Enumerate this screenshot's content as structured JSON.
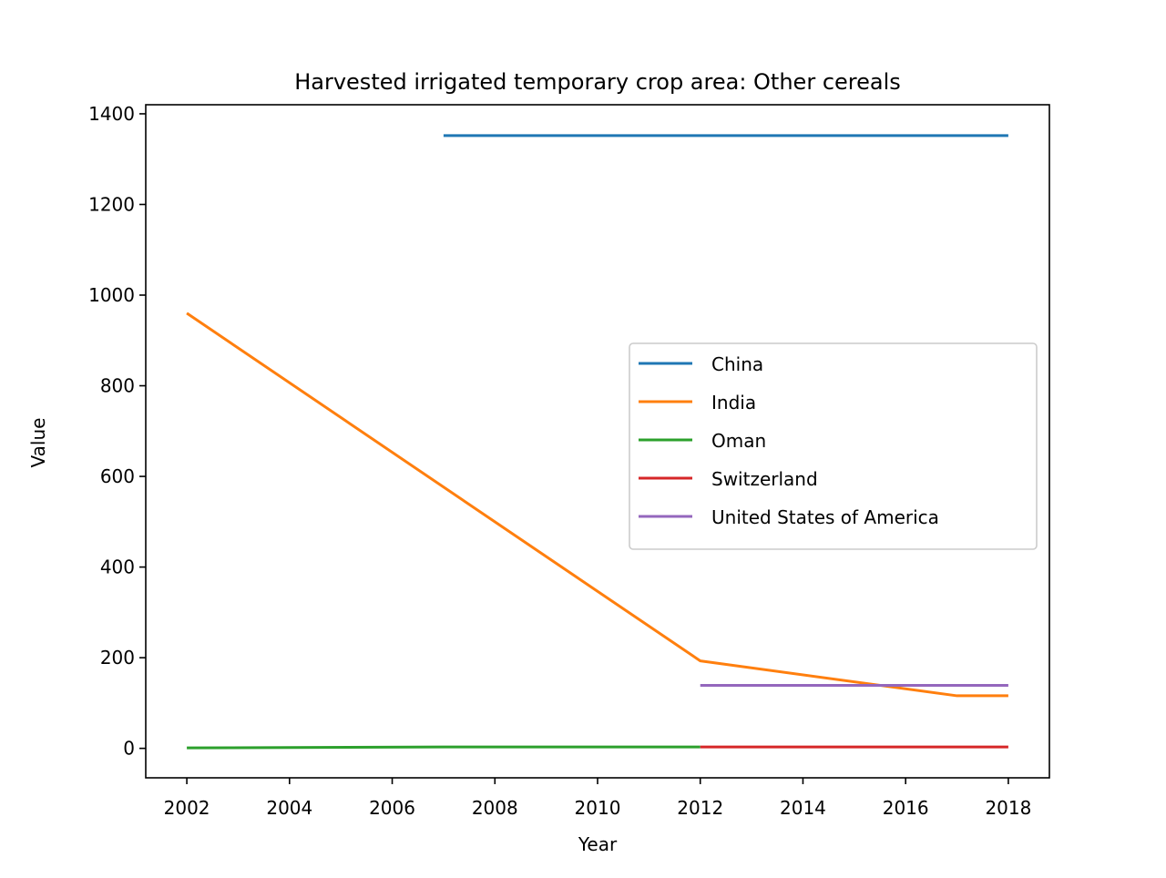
{
  "chart_data": {
    "type": "line",
    "title": "Harvested irrigated temporary crop area: Other cereals",
    "xlabel": "Year",
    "ylabel": "Value",
    "xlim": [
      2001.2,
      2018.8
    ],
    "ylim": [
      -65,
      1420
    ],
    "xticks": [
      2002,
      2004,
      2006,
      2008,
      2010,
      2012,
      2014,
      2016,
      2018
    ],
    "yticks": [
      0,
      200,
      400,
      600,
      800,
      1000,
      1200,
      1400
    ],
    "grid": false,
    "legend_position": "center-right",
    "series": [
      {
        "name": "China",
        "color": "#1f77b4",
        "x": [
          2007,
          2012,
          2018
        ],
        "y": [
          1352,
          1352,
          1352
        ]
      },
      {
        "name": "India",
        "color": "#ff7f0e",
        "x": [
          2002,
          2012,
          2017,
          2018
        ],
        "y": [
          960,
          193,
          116,
          116
        ]
      },
      {
        "name": "Oman",
        "color": "#2ca02c",
        "x": [
          2002,
          2007,
          2012
        ],
        "y": [
          1,
          3,
          3
        ]
      },
      {
        "name": "Switzerland",
        "color": "#d62728",
        "x": [
          2012,
          2018
        ],
        "y": [
          3,
          3
        ]
      },
      {
        "name": "United States of America",
        "color": "#9467bd",
        "x": [
          2012,
          2018
        ],
        "y": [
          139,
          139
        ]
      }
    ]
  }
}
